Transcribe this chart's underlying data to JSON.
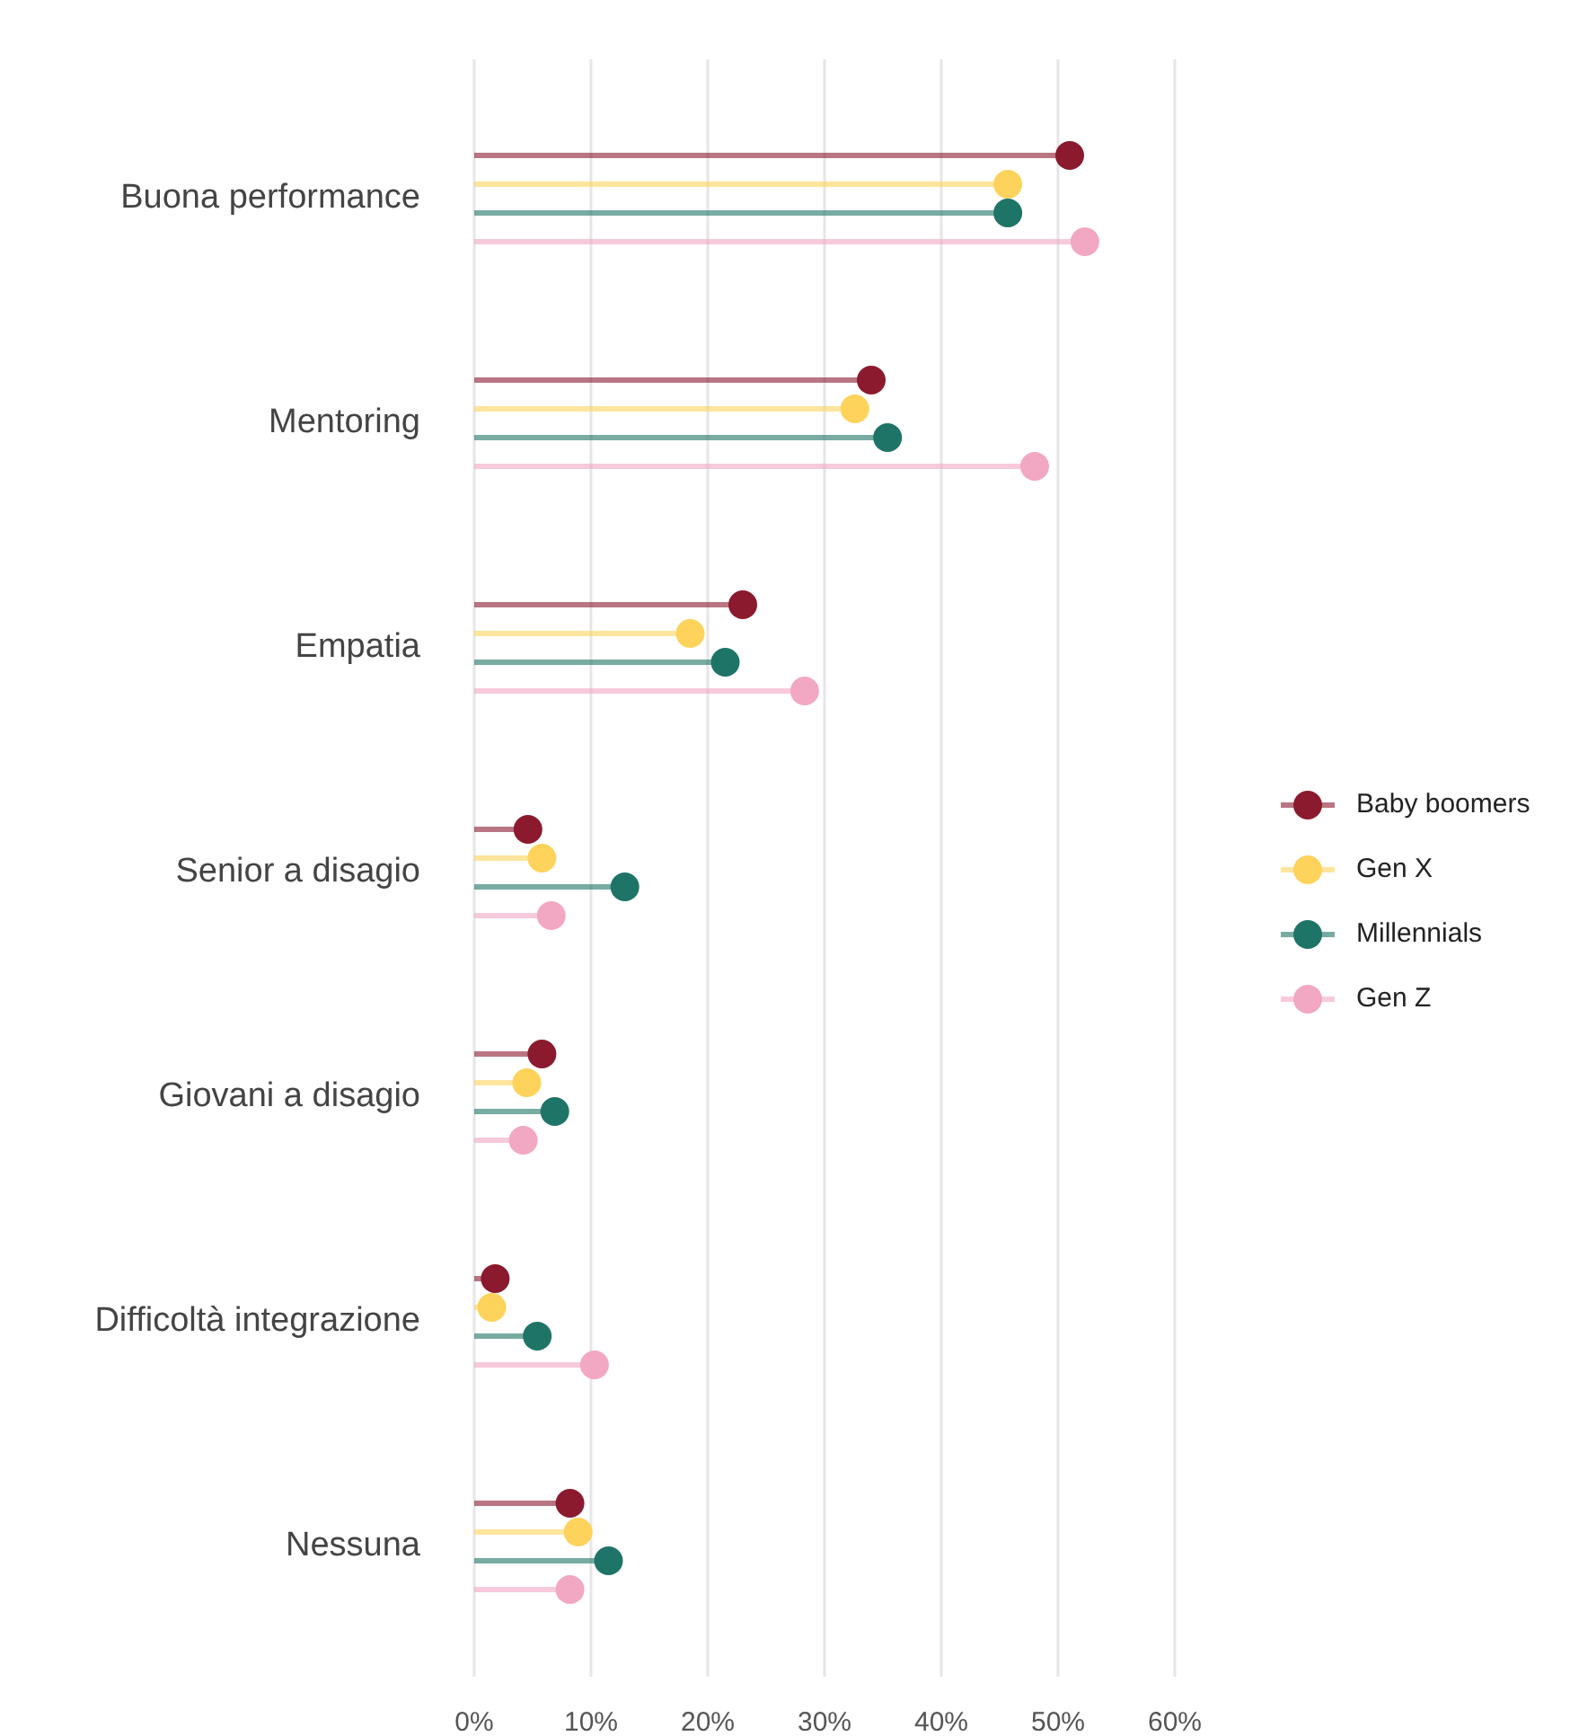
{
  "chart_data": {
    "type": "lollipop",
    "orientation": "horizontal",
    "categories": [
      "Buona performance",
      "Mentoring",
      "Empatia",
      "Senior a disagio",
      "Giovani a disagio",
      "Difficoltà integrazione",
      "Nessuna"
    ],
    "series": [
      {
        "name": "Baby boomers",
        "color": "#8b1a2e",
        "values": [
          51,
          34,
          23,
          4.6,
          5.8,
          1.8,
          8.2
        ]
      },
      {
        "name": "Gen X",
        "color": "#fdd35c",
        "values": [
          45.7,
          32.6,
          18.5,
          5.8,
          4.5,
          1.5,
          8.9
        ]
      },
      {
        "name": "Millennials",
        "color": "#1e7466",
        "values": [
          45.7,
          35.4,
          21.5,
          12.9,
          6.9,
          5.4,
          11.5
        ]
      },
      {
        "name": "Gen Z",
        "color": "#f2a7c3",
        "values": [
          52.3,
          48,
          28.3,
          6.6,
          4.2,
          10.3,
          8.2
        ]
      }
    ],
    "xlim": [
      0,
      60
    ],
    "xticks": [
      {
        "value": 0,
        "label": "0%"
      },
      {
        "value": 10,
        "label": "10%"
      },
      {
        "value": 20,
        "label": "20%"
      },
      {
        "value": 30,
        "label": "30%"
      },
      {
        "value": 40,
        "label": "40%"
      },
      {
        "value": 50,
        "label": "50%"
      },
      {
        "value": 60,
        "label": "60%"
      }
    ],
    "grid": "x",
    "legend": "right",
    "marker": "circle"
  }
}
